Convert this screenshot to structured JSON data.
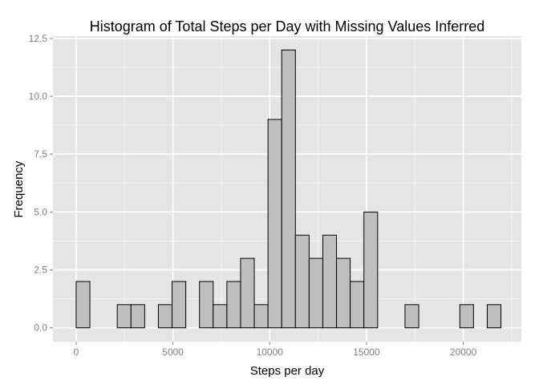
{
  "chart_data": {
    "type": "bar",
    "title": "Histogram of Total Steps per Day with Missing Values Inferred",
    "xlabel": "Steps per day",
    "ylabel": "Frequency",
    "xlim": [
      -1200,
      23000
    ],
    "ylim": [
      -0.6,
      12.6
    ],
    "x_ticks": [
      0,
      5000,
      10000,
      15000,
      20000
    ],
    "x_tick_labels": [
      "0",
      "5000",
      "10000",
      "15000",
      "20000"
    ],
    "y_ticks": [
      0,
      2.5,
      5,
      7.5,
      10,
      12.5
    ],
    "y_tick_labels": [
      "0.0",
      "2.5",
      "5.0",
      "7.5",
      "10.0",
      "12.5"
    ],
    "bin_width": 707.9,
    "bin_start": -707.9,
    "values": [
      0,
      2,
      0,
      0,
      1,
      1,
      0,
      1,
      2,
      0,
      2,
      1,
      2,
      3,
      1,
      9,
      12,
      4,
      3,
      4,
      3,
      2,
      5,
      0,
      0,
      1,
      0,
      0,
      0,
      1,
      0,
      1,
      0
    ],
    "grid": true,
    "colors": {
      "panel_background": "#e5e5e5",
      "grid_major": "#ffffff",
      "grid_minor": "#f2f2f2",
      "bar_fill": "#bebebe",
      "bar_outline": "#000000"
    }
  }
}
